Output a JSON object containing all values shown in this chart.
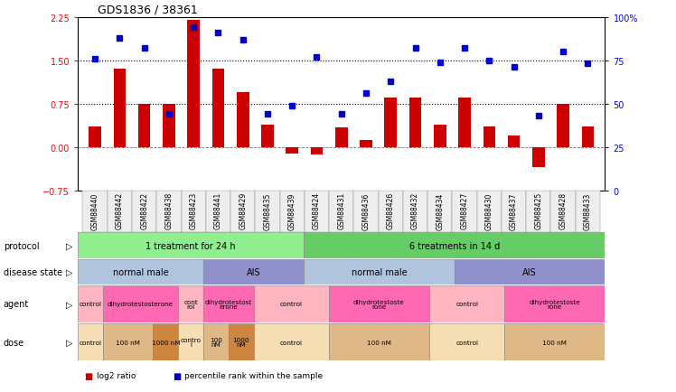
{
  "title": "GDS1836 / 38361",
  "samples": [
    "GSM88440",
    "GSM88442",
    "GSM88422",
    "GSM88438",
    "GSM88423",
    "GSM88441",
    "GSM88429",
    "GSM88435",
    "GSM88439",
    "GSM88424",
    "GSM88431",
    "GSM88436",
    "GSM88426",
    "GSM88432",
    "GSM88434",
    "GSM88427",
    "GSM88430",
    "GSM88437",
    "GSM88425",
    "GSM88428",
    "GSM88433"
  ],
  "log2_ratio": [
    0.35,
    1.35,
    0.75,
    0.75,
    2.2,
    1.35,
    0.95,
    0.38,
    -0.12,
    -0.13,
    0.34,
    0.12,
    0.85,
    0.85,
    0.38,
    0.85,
    0.35,
    0.2,
    -0.35,
    0.75,
    0.35
  ],
  "percentile": [
    76,
    88,
    82,
    44,
    94,
    91,
    87,
    44,
    49,
    77,
    44,
    56,
    63,
    82,
    74,
    82,
    75,
    71,
    43,
    80,
    73
  ],
  "protocol_groups": [
    {
      "label": "1 treatment for 24 h",
      "start": 0,
      "end": 8,
      "color": "#90EE90"
    },
    {
      "label": "6 treatments in 14 d",
      "start": 9,
      "end": 20,
      "color": "#66CC66"
    }
  ],
  "disease_groups": [
    {
      "label": "normal male",
      "start": 0,
      "end": 4,
      "color": "#B0C4DE"
    },
    {
      "label": "AIS",
      "start": 5,
      "end": 8,
      "color": "#9090CC"
    },
    {
      "label": "normal male",
      "start": 9,
      "end": 14,
      "color": "#B0C4DE"
    },
    {
      "label": "AIS",
      "start": 15,
      "end": 20,
      "color": "#9090CC"
    }
  ],
  "agent_groups": [
    {
      "label": "control",
      "start": 0,
      "end": 0,
      "color": "#FFB6C1"
    },
    {
      "label": "dihydrotestosterone",
      "start": 1,
      "end": 3,
      "color": "#FF69B4"
    },
    {
      "label": "cont\nrol",
      "start": 4,
      "end": 4,
      "color": "#FFB6C1"
    },
    {
      "label": "dihydrotestost\nerone",
      "start": 5,
      "end": 6,
      "color": "#FF69B4"
    },
    {
      "label": "control",
      "start": 7,
      "end": 9,
      "color": "#FFB6C1"
    },
    {
      "label": "dihydrotestoste\nrone",
      "start": 10,
      "end": 13,
      "color": "#FF69B4"
    },
    {
      "label": "control",
      "start": 14,
      "end": 16,
      "color": "#FFB6C1"
    },
    {
      "label": "dihydrotestoste\nrone",
      "start": 17,
      "end": 20,
      "color": "#FF69B4"
    }
  ],
  "dose_groups": [
    {
      "label": "control",
      "start": 0,
      "end": 0,
      "color": "#F5DEB3"
    },
    {
      "label": "100 nM",
      "start": 1,
      "end": 2,
      "color": "#DEB887"
    },
    {
      "label": "1000 nM",
      "start": 3,
      "end": 3,
      "color": "#CD853F"
    },
    {
      "label": "contro\nl",
      "start": 4,
      "end": 4,
      "color": "#F5DEB3"
    },
    {
      "label": "100\nnM",
      "start": 5,
      "end": 5,
      "color": "#DEB887"
    },
    {
      "label": "1000\nnM",
      "start": 6,
      "end": 6,
      "color": "#CD853F"
    },
    {
      "label": "control",
      "start": 7,
      "end": 9,
      "color": "#F5DEB3"
    },
    {
      "label": "100 nM",
      "start": 10,
      "end": 13,
      "color": "#DEB887"
    },
    {
      "label": "control",
      "start": 14,
      "end": 16,
      "color": "#F5DEB3"
    },
    {
      "label": "100 nM",
      "start": 17,
      "end": 20,
      "color": "#DEB887"
    }
  ],
  "bar_color": "#CC0000",
  "dot_color": "#0000CC",
  "ylim_left": [
    -0.75,
    2.25
  ],
  "ylim_right": [
    0,
    100
  ],
  "yticks_left": [
    -0.75,
    0,
    0.75,
    1.5,
    2.25
  ],
  "yticks_right": [
    0,
    25,
    50,
    75,
    100
  ],
  "hlines": [
    0.75,
    1.5
  ],
  "legend_items": [
    {
      "color": "#CC0000",
      "label": "log2 ratio"
    },
    {
      "color": "#0000CC",
      "label": "percentile rank within the sample"
    }
  ]
}
